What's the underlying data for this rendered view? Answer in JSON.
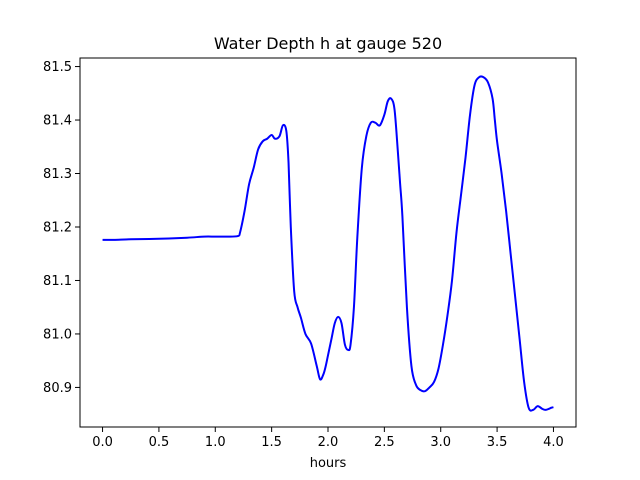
{
  "chart_data": {
    "type": "line",
    "title": "Water Depth h at gauge 520",
    "xlabel": "hours",
    "ylabel": "",
    "xlim": [
      -0.2,
      4.2
    ],
    "ylim": [
      80.826,
      81.516
    ],
    "xticks": [
      0.0,
      0.5,
      1.0,
      1.5,
      2.0,
      2.5,
      3.0,
      3.5,
      4.0
    ],
    "xtick_labels": [
      "0.0",
      "0.5",
      "1.0",
      "1.5",
      "2.0",
      "2.5",
      "3.0",
      "3.5",
      "4.0"
    ],
    "yticks": [
      80.9,
      81.0,
      81.1,
      81.2,
      81.3,
      81.4,
      81.5
    ],
    "ytick_labels": [
      "80.9",
      "81.0",
      "81.1",
      "81.2",
      "81.3",
      "81.4",
      "81.5"
    ],
    "grid": false,
    "series": [
      {
        "color": "#0000ff",
        "x": [
          0.0,
          0.1,
          0.25,
          0.5,
          0.75,
          0.9,
          1.0,
          1.1,
          1.2,
          1.22,
          1.26,
          1.3,
          1.34,
          1.38,
          1.42,
          1.46,
          1.5,
          1.53,
          1.57,
          1.6,
          1.63,
          1.65,
          1.67,
          1.7,
          1.73,
          1.76,
          1.8,
          1.85,
          1.9,
          1.93,
          1.96,
          1.98,
          2.0,
          2.03,
          2.06,
          2.09,
          2.12,
          2.15,
          2.18,
          2.2,
          2.23,
          2.26,
          2.3,
          2.34,
          2.38,
          2.42,
          2.46,
          2.5,
          2.53,
          2.56,
          2.59,
          2.62,
          2.64,
          2.66,
          2.7,
          2.74,
          2.78,
          2.82,
          2.86,
          2.9,
          2.94,
          2.98,
          3.02,
          3.06,
          3.1,
          3.14,
          3.18,
          3.22,
          3.26,
          3.3,
          3.34,
          3.38,
          3.42,
          3.46,
          3.48,
          3.5,
          3.54,
          3.58,
          3.62,
          3.66,
          3.7,
          3.74,
          3.78,
          3.82,
          3.86,
          3.9,
          3.93,
          3.96,
          3.98,
          4.0
        ],
        "y": [
          81.176,
          81.176,
          81.177,
          81.178,
          81.18,
          81.182,
          81.182,
          81.182,
          81.183,
          81.19,
          81.23,
          81.28,
          81.31,
          81.345,
          81.36,
          81.365,
          81.372,
          81.365,
          81.37,
          81.39,
          81.38,
          81.32,
          81.2,
          81.08,
          81.05,
          81.03,
          81.0,
          80.982,
          80.94,
          80.915,
          80.925,
          80.94,
          80.96,
          80.99,
          81.02,
          81.032,
          81.02,
          80.98,
          80.97,
          80.98,
          81.05,
          81.18,
          81.31,
          81.37,
          81.395,
          81.395,
          81.39,
          81.41,
          81.435,
          81.44,
          81.42,
          81.34,
          81.28,
          81.22,
          81.05,
          80.94,
          80.905,
          80.895,
          80.893,
          80.9,
          80.91,
          80.935,
          80.98,
          81.035,
          81.1,
          81.19,
          81.26,
          81.33,
          81.41,
          81.465,
          81.48,
          81.48,
          81.47,
          81.44,
          81.4,
          81.36,
          81.3,
          81.23,
          81.15,
          81.07,
          80.99,
          80.91,
          80.862,
          80.858,
          80.865,
          80.86,
          80.858,
          80.86,
          80.862,
          80.863
        ]
      }
    ]
  }
}
